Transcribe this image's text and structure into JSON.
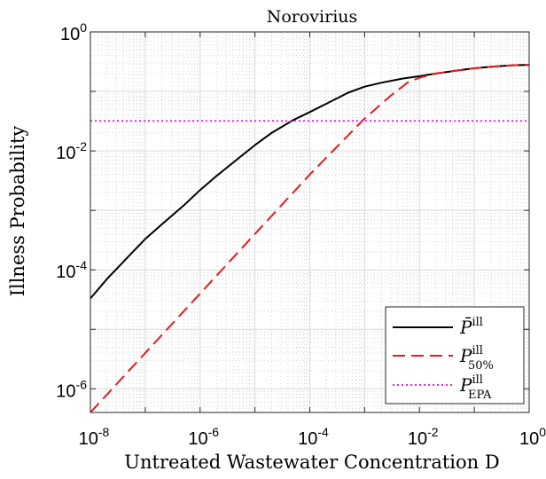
{
  "chart_data": {
    "type": "line",
    "title": "Norovirius",
    "xlabel": "Untreated Wastewater Concentration D",
    "ylabel": "Illness Probability",
    "xscale": "log",
    "yscale": "log",
    "xlim": [
      1e-08,
      1
    ],
    "ylim": [
      4e-07,
      1
    ],
    "grid": true,
    "legend_position": "bottom-right",
    "x_ticks": [
      {
        "base": "10",
        "exp": "-8",
        "value": 1e-08
      },
      {
        "base": "10",
        "exp": "-6",
        "value": 1e-06
      },
      {
        "base": "10",
        "exp": "-4",
        "value": 0.0001
      },
      {
        "base": "10",
        "exp": "-2",
        "value": 0.01
      },
      {
        "base": "10",
        "exp": "0",
        "value": 1
      }
    ],
    "y_ticks": [
      {
        "base": "10",
        "exp": "-6",
        "value": 1e-06
      },
      {
        "base": "10",
        "exp": "-4",
        "value": 0.0001
      },
      {
        "base": "10",
        "exp": "-2",
        "value": 0.01
      },
      {
        "base": "10",
        "exp": "0",
        "value": 1
      }
    ],
    "series": [
      {
        "name": "P̄ ill",
        "color": "#000000",
        "style": "solid",
        "x": [
          1e-08,
          2e-08,
          5e-08,
          1e-07,
          2e-07,
          5e-07,
          1e-06,
          2e-06,
          5e-06,
          1e-05,
          2e-05,
          5e-05,
          0.0001,
          0.0002,
          0.0005,
          0.001,
          0.002,
          0.005,
          0.01,
          0.02,
          0.05,
          0.1,
          0.2,
          0.5,
          1
        ],
        "y": [
          3.3e-05,
          7e-05,
          0.00017,
          0.00033,
          0.00058,
          0.0012,
          0.0022,
          0.0038,
          0.0075,
          0.0125,
          0.02,
          0.033,
          0.045,
          0.062,
          0.095,
          0.12,
          0.14,
          0.165,
          0.18,
          0.2,
          0.225,
          0.245,
          0.26,
          0.275,
          0.28
        ]
      },
      {
        "name": "P ill 50%",
        "color": "#e8191c",
        "style": "dashed",
        "x": [
          1e-08,
          1e-07,
          1e-06,
          1e-05,
          0.0001,
          0.001,
          0.003,
          0.006,
          0.01,
          0.02,
          0.05,
          0.1,
          0.2,
          0.5,
          1
        ],
        "y": [
          4e-07,
          4e-06,
          4e-05,
          0.0004,
          0.004,
          0.035,
          0.085,
          0.14,
          0.17,
          0.2,
          0.225,
          0.245,
          0.26,
          0.275,
          0.28
        ]
      },
      {
        "name": "P ill EPA",
        "color": "#e628e6",
        "style": "dotted",
        "x": [
          1e-08,
          1
        ],
        "y": [
          0.032,
          0.032
        ]
      }
    ],
    "legend": [
      {
        "main": "P̄",
        "sup": "ill",
        "sub": ""
      },
      {
        "main": "P",
        "sup": "ill",
        "sub": "50%"
      },
      {
        "main": "P",
        "sup": "ill",
        "sub": "EPA"
      }
    ]
  }
}
